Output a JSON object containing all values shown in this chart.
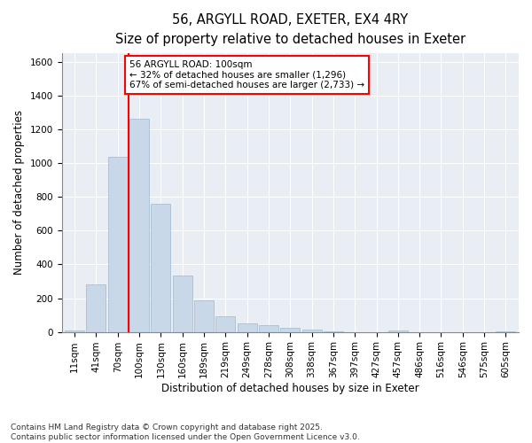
{
  "title_line1": "56, ARGYLL ROAD, EXETER, EX4 4RY",
  "title_line2": "Size of property relative to detached houses in Exeter",
  "xlabel": "Distribution of detached houses by size in Exeter",
  "ylabel": "Number of detached properties",
  "categories": [
    "11sqm",
    "41sqm",
    "70sqm",
    "100sqm",
    "130sqm",
    "160sqm",
    "189sqm",
    "219sqm",
    "249sqm",
    "278sqm",
    "308sqm",
    "338sqm",
    "367sqm",
    "397sqm",
    "427sqm",
    "457sqm",
    "486sqm",
    "516sqm",
    "546sqm",
    "575sqm",
    "605sqm"
  ],
  "values": [
    10,
    280,
    1040,
    1265,
    760,
    335,
    185,
    90,
    50,
    38,
    25,
    12,
    5,
    0,
    0,
    8,
    0,
    0,
    0,
    0,
    5
  ],
  "bar_color": "#c8d8e8",
  "bar_edge_color": "#a0b8d0",
  "vline_color": "red",
  "vline_index": 3,
  "annotation_text": "56 ARGYLL ROAD: 100sqm\n← 32% of detached houses are smaller (1,296)\n67% of semi-detached houses are larger (2,733) →",
  "annotation_box_color": "white",
  "annotation_box_edge": "red",
  "ylim": [
    0,
    1650
  ],
  "yticks": [
    0,
    200,
    400,
    600,
    800,
    1000,
    1200,
    1400,
    1600
  ],
  "bg_color": "#e8eef4",
  "footer_line1": "Contains HM Land Registry data © Crown copyright and database right 2025.",
  "footer_line2": "Contains public sector information licensed under the Open Government Licence v3.0.",
  "title_fontsize": 10.5,
  "subtitle_fontsize": 9.5,
  "axis_label_fontsize": 8.5,
  "tick_fontsize": 7.5,
  "annotation_fontsize": 7.5,
  "footer_fontsize": 6.5
}
